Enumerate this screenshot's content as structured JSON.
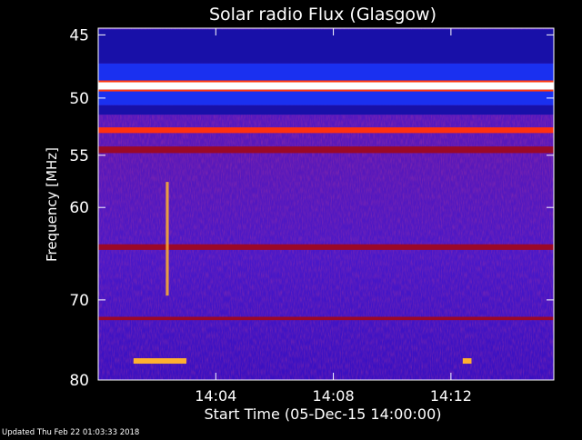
{
  "title": "Solar radio Flux (Glasgow)",
  "footer": "Updated Thu Feb 22 01:03:33 2018",
  "colors": {
    "background": "#000000",
    "text": "#ffffff",
    "spectrogram_base": "#3a10c8",
    "band_high": "#ffffff",
    "band_mid": "#ff3010",
    "band_low": "#9a0828",
    "burst": "#ffb030"
  },
  "chart_data": {
    "type": "heatmap",
    "title": "Solar radio Flux (Glasgow)",
    "xlabel": "Start Time (05-Dec-15 14:00:00)",
    "ylabel": "Frequency [MHz]",
    "x_unit": "minutes after 14:00",
    "xlim": [
      0,
      15.5
    ],
    "ylim": [
      80,
      44.5
    ],
    "y_scale": "log",
    "x_ticks": [
      {
        "value": 4,
        "label": "14:04"
      },
      {
        "value": 8,
        "label": "14:08"
      },
      {
        "value": 12,
        "label": "14:12"
      }
    ],
    "y_ticks": [
      {
        "value": 45,
        "label": "45"
      },
      {
        "value": 50,
        "label": "50"
      },
      {
        "value": 55,
        "label": "55"
      },
      {
        "value": 60,
        "label": "60"
      },
      {
        "value": 70,
        "label": "70"
      },
      {
        "value": 80,
        "label": "80"
      }
    ],
    "bands": [
      {
        "y0": 44.6,
        "y1": 47.2,
        "level": "dark-blue"
      },
      {
        "y0": 47.2,
        "y1": 48.7,
        "level": "blue"
      },
      {
        "y0": 48.7,
        "y1": 49.3,
        "level": "white"
      },
      {
        "y0": 49.3,
        "y1": 50.6,
        "level": "blue"
      },
      {
        "y0": 50.6,
        "y1": 51.4,
        "level": "dark-blue"
      },
      {
        "y0": 52.5,
        "y1": 53.0,
        "level": "red"
      },
      {
        "y0": 54.2,
        "y1": 54.8,
        "level": "dark-red"
      },
      {
        "y0": 63.8,
        "y1": 64.4,
        "level": "dark-red"
      },
      {
        "y0": 72.0,
        "y1": 72.4,
        "level": "dark-red"
      }
    ],
    "bursts": [
      {
        "t0": 1.2,
        "t1": 3.0,
        "f": 77.5,
        "level": "orange"
      },
      {
        "t0": 12.4,
        "t1": 12.7,
        "f": 77.5,
        "level": "orange"
      },
      {
        "t0": 2.3,
        "t1": 2.4,
        "f0": 57.5,
        "f1": 69.5,
        "level": "orange-streak"
      }
    ]
  }
}
